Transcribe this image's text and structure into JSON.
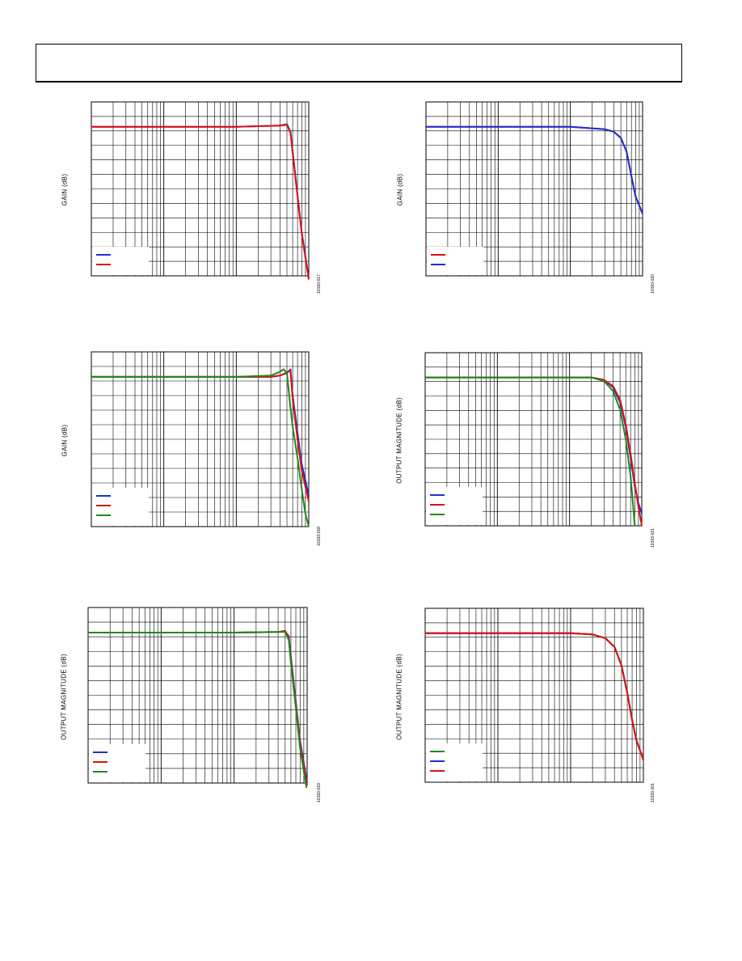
{
  "header": {
    "title": ""
  },
  "chart_data": [
    {
      "type": "line",
      "ylabel": "GAIN (dB)",
      "figure_id": "10193-017",
      "x_scale": "log",
      "grid": true,
      "series": [
        {
          "color": "#1f2fd6",
          "x": [
            1,
            100,
            400,
            500,
            560,
            600,
            700,
            800,
            1000
          ],
          "y": [
            0,
            0,
            0.1,
            0.2,
            -0.4,
            -2,
            -5.5,
            -8.5,
            -12.2
          ]
        },
        {
          "color": "#e01010",
          "x": [
            1,
            100,
            400,
            500,
            560,
            600,
            700,
            800,
            1000
          ],
          "y": [
            0,
            0,
            0.1,
            0.15,
            -0.5,
            -2.1,
            -5.6,
            -8.6,
            -12.3
          ]
        }
      ]
    },
    {
      "type": "line",
      "ylabel": "GAIN (dB)",
      "figure_id": "10193-020",
      "x_scale": "log",
      "grid": true,
      "series": [
        {
          "color": "#e01010",
          "x": [
            1,
            100,
            300,
            400,
            500,
            600,
            700,
            800,
            1000
          ],
          "y": [
            0,
            0,
            -0.2,
            -0.4,
            -0.9,
            -2,
            -4,
            -5.6,
            -7
          ]
        },
        {
          "color": "#1f2fd6",
          "x": [
            1,
            100,
            300,
            400,
            500,
            600,
            700,
            800,
            1000
          ],
          "y": [
            0,
            0,
            -0.2,
            -0.4,
            -0.9,
            -2,
            -4,
            -5.6,
            -7
          ]
        }
      ]
    },
    {
      "type": "line",
      "ylabel": "GAIN (dB)",
      "figure_id": "10193-018",
      "x_scale": "log",
      "grid": true,
      "series": [
        {
          "color": "#1f2fd6",
          "x": [
            1,
            100,
            300,
            400,
            500,
            560,
            600,
            700,
            800,
            1000
          ],
          "y": [
            0,
            0,
            0,
            0.1,
            0.3,
            0.6,
            -1.5,
            -4.5,
            -7,
            -9.5
          ]
        },
        {
          "color": "#e01010",
          "x": [
            1,
            100,
            300,
            400,
            500,
            560,
            600,
            700,
            800,
            1000
          ],
          "y": [
            0,
            0,
            0,
            0.1,
            0.35,
            0.5,
            -1.8,
            -5,
            -7.5,
            -10
          ]
        },
        {
          "color": "#1a8c1a",
          "x": [
            1,
            100,
            300,
            400,
            450,
            500,
            560,
            600,
            700,
            800,
            900,
            1000
          ],
          "y": [
            0,
            0,
            0.1,
            0.4,
            0.6,
            0.3,
            -2.5,
            -4,
            -6.5,
            -9,
            -11,
            -12
          ]
        }
      ]
    },
    {
      "type": "line",
      "ylabel": "OUTPUT MAGNITUDE (dB)",
      "figure_id": "10193-021",
      "x_scale": "log",
      "grid": true,
      "series": [
        {
          "color": "#1f2fd6",
          "x": [
            1,
            100,
            200,
            300,
            400,
            500,
            600,
            700,
            800,
            900,
            1000
          ],
          "y": [
            0,
            0,
            0,
            -0.2,
            -0.8,
            -2,
            -4,
            -6.5,
            -8.8,
            -10.2,
            -11
          ]
        },
        {
          "color": "#e01010",
          "x": [
            1,
            100,
            200,
            300,
            400,
            500,
            600,
            700,
            800,
            900,
            1000
          ],
          "y": [
            0,
            0,
            0,
            -0.2,
            -0.7,
            -1.8,
            -3.8,
            -6.2,
            -8.5,
            -10.5,
            -12
          ]
        },
        {
          "color": "#1a8c1a",
          "x": [
            1,
            100,
            200,
            300,
            400,
            500,
            600,
            700,
            750,
            800
          ],
          "y": [
            0,
            0,
            0,
            -0.3,
            -1.1,
            -2.6,
            -5,
            -8,
            -10,
            -12
          ]
        }
      ]
    },
    {
      "type": "line",
      "ylabel": "OUTPUT MAGNITUDE (dB)",
      "figure_id": "10193-019",
      "x_scale": "log",
      "grid": true,
      "series": [
        {
          "color": "#1f2fd6",
          "x": [
            1,
            100,
            400,
            500,
            560,
            600,
            700,
            800,
            1000
          ],
          "y": [
            0,
            0,
            0.05,
            0.1,
            -0.3,
            -2,
            -5.5,
            -8.6,
            -12
          ]
        },
        {
          "color": "#e01010",
          "x": [
            1,
            100,
            400,
            500,
            560,
            600,
            700,
            800,
            1000
          ],
          "y": [
            0,
            0,
            0.05,
            0.15,
            -0.4,
            -2.2,
            -5.7,
            -8.8,
            -12.2
          ]
        },
        {
          "color": "#1a8c1a",
          "x": [
            1,
            100,
            400,
            500,
            560,
            600,
            700,
            800,
            980
          ],
          "y": [
            0,
            0,
            0.05,
            0.05,
            -0.6,
            -2.5,
            -6,
            -9.2,
            -12.4
          ]
        }
      ]
    },
    {
      "type": "line",
      "ylabel": "OUTPUT MAGNITUDE (dB)",
      "figure_id": "10193-101",
      "x_scale": "log",
      "grid": true,
      "series": [
        {
          "color": "#1a8c1a",
          "x": [
            1,
            100,
            200,
            300,
            400,
            500,
            600,
            700,
            800,
            1000
          ],
          "y": [
            0,
            0,
            -0.1,
            -0.4,
            -1.1,
            -2.6,
            -4.8,
            -7,
            -8.6,
            -10.2
          ]
        },
        {
          "color": "#1f2fd6",
          "x": [
            1,
            100,
            200,
            300,
            400,
            500,
            600,
            700,
            800,
            1000
          ],
          "y": [
            0,
            0,
            -0.1,
            -0.4,
            -1.1,
            -2.6,
            -4.8,
            -7,
            -8.6,
            -10.2
          ]
        },
        {
          "color": "#e01010",
          "x": [
            1,
            100,
            200,
            300,
            400,
            500,
            600,
            700,
            800,
            1000
          ],
          "y": [
            0,
            0,
            -0.1,
            -0.4,
            -1.1,
            -2.6,
            -4.8,
            -7,
            -8.6,
            -10.2
          ]
        }
      ]
    }
  ]
}
